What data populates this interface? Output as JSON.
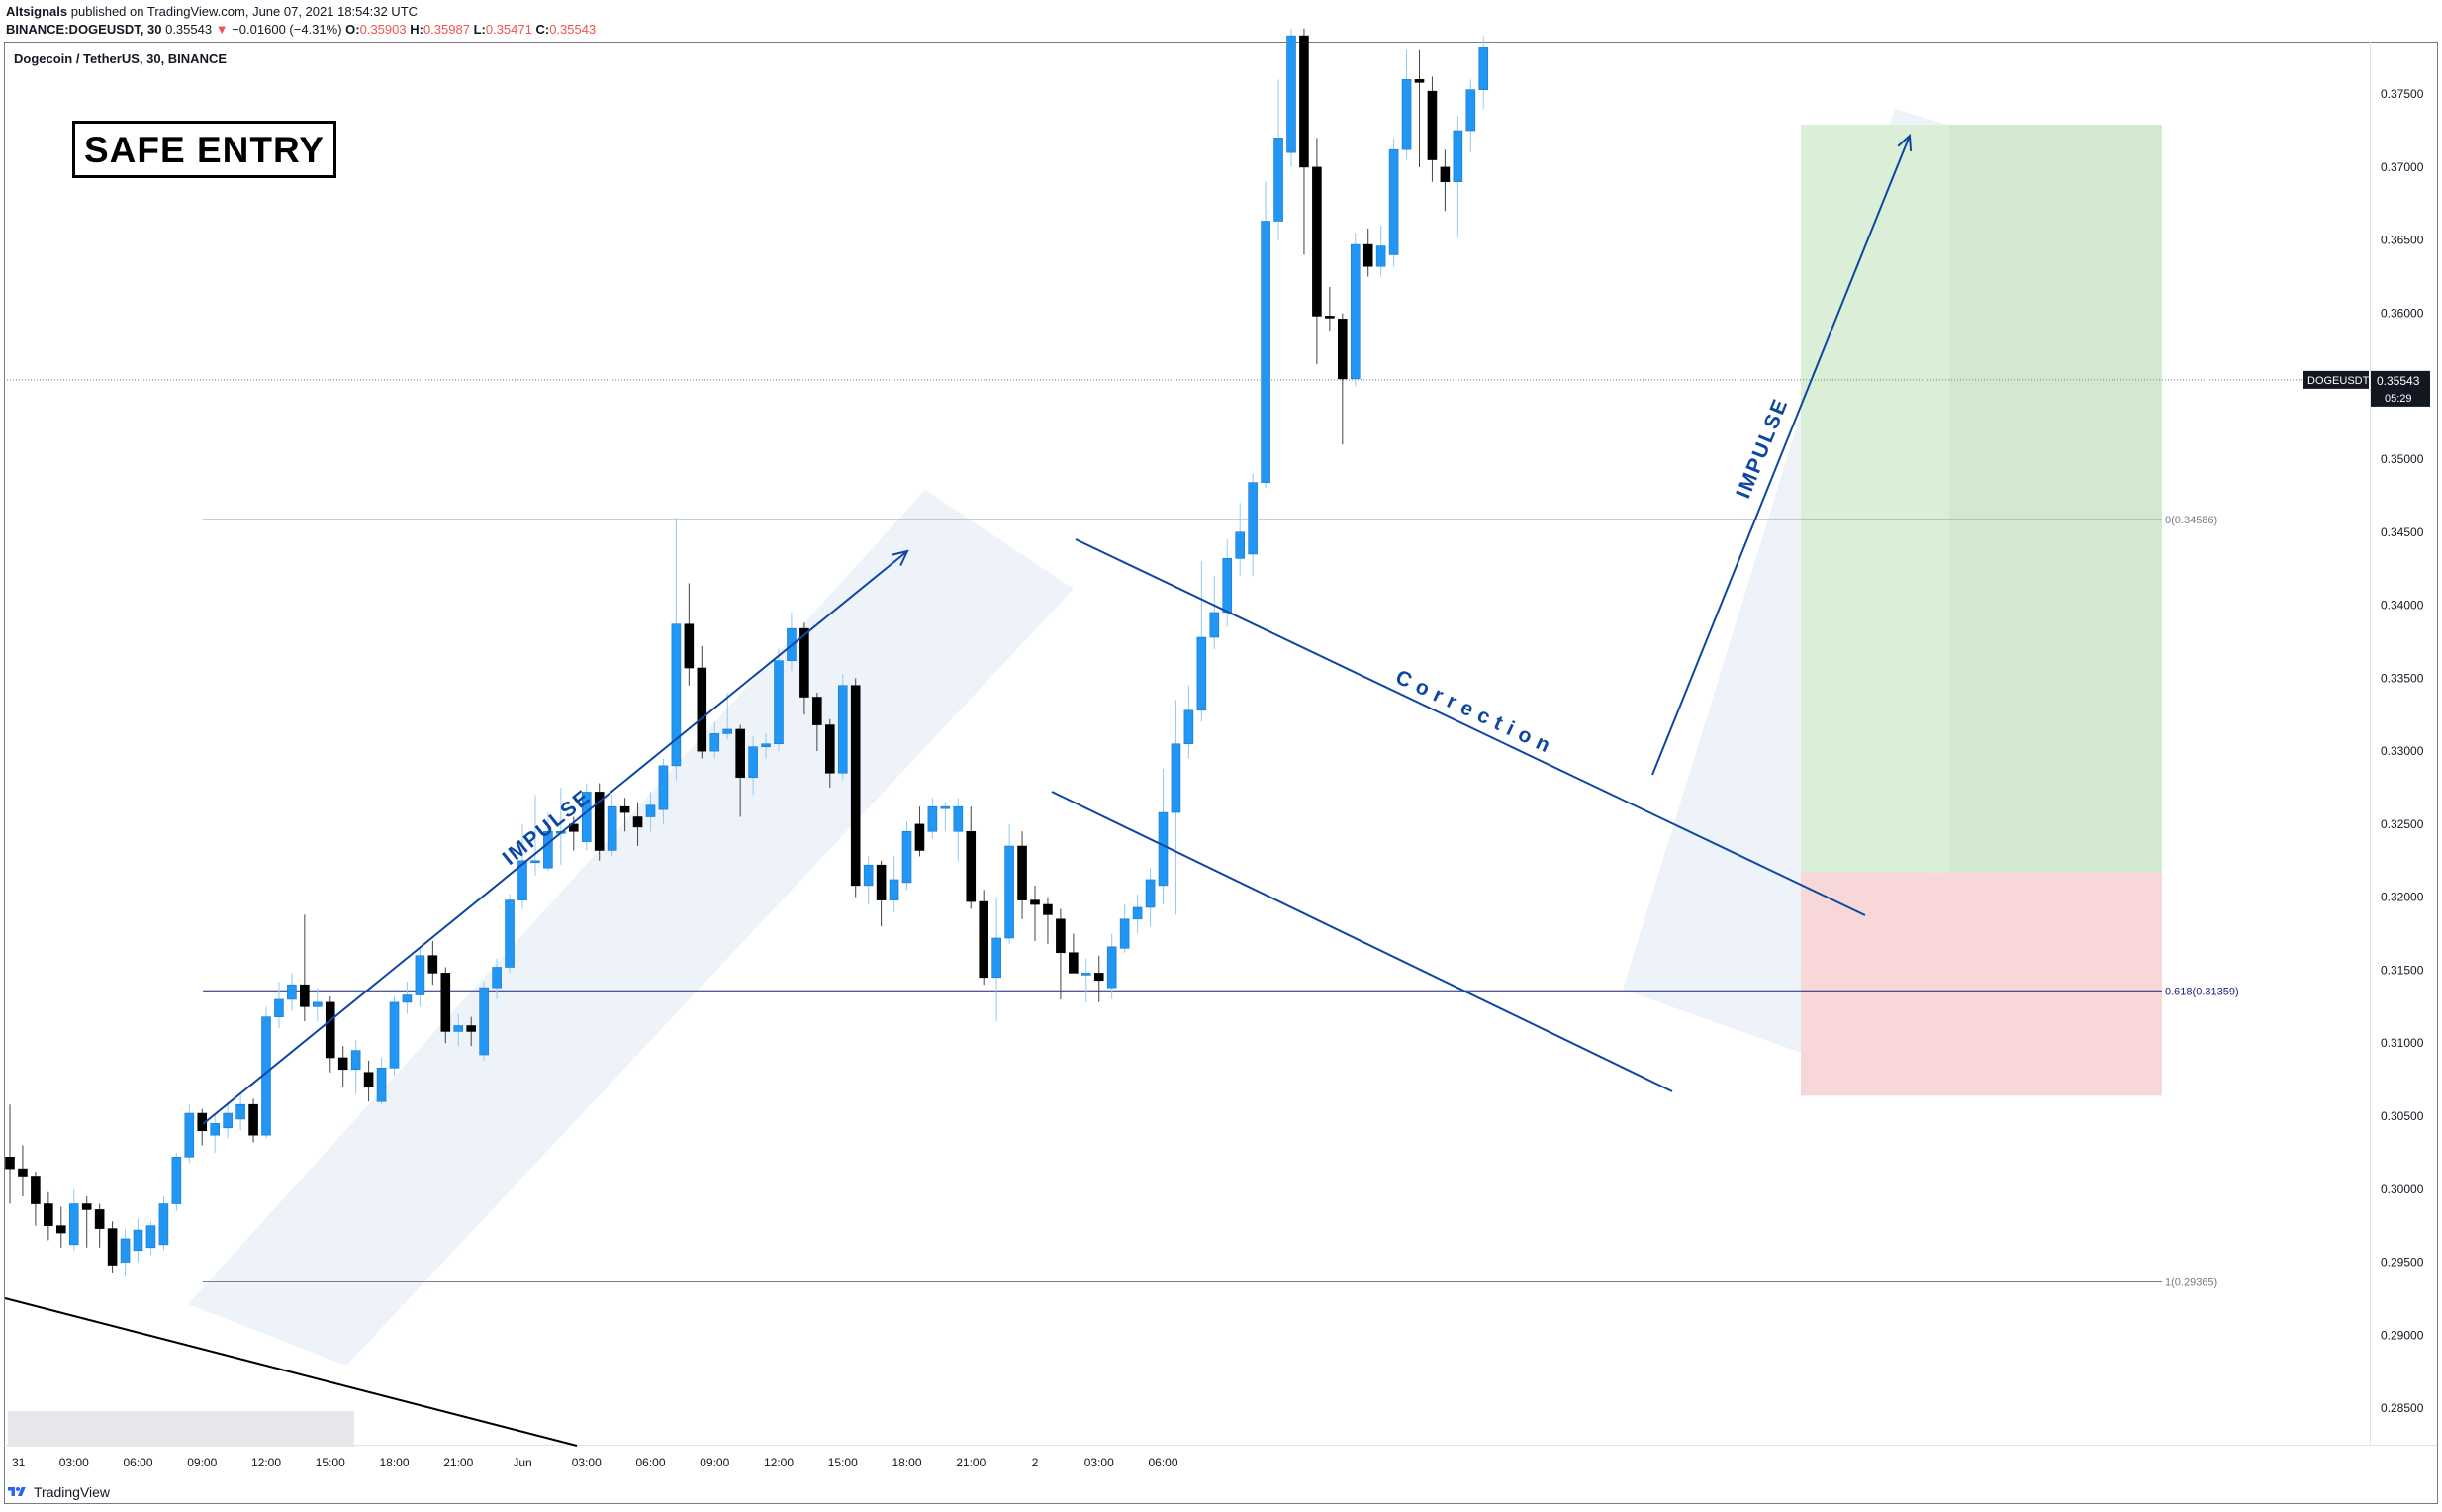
{
  "header": {
    "author": "Altsignals",
    "published": "published on TradingView.com, June 07, 2021 18:54:32 UTC",
    "ticker_line_prefix": "BINANCE:DOGEUSDT, 30",
    "last": "0.35543",
    "change_arrow": "▼",
    "change": "−0.01600 (−4.31%)",
    "o_label": "O:",
    "o": "0.35903",
    "h_label": "H:",
    "h": "0.35987",
    "l_label": "L:",
    "l": "0.35471",
    "c_label": "C:",
    "c": "0.35543"
  },
  "symbol_title": "Dogecoin / TetherUS, 30, BINANCE",
  "badge": "SAFE ENTRY",
  "footer_brand": "TradingView",
  "colors": {
    "up": "#2196f3",
    "down": "#000000",
    "line": "#0d47a1",
    "stop": "#f8d7d9",
    "target": "#dbeed8"
  },
  "chart_data": {
    "type": "candlestick",
    "title": "Dogecoin / TetherUS, 30, BINANCE",
    "interval": "30m",
    "ylim": [
      0.2825,
      0.3786
    ],
    "y_ticks": [
      "0.37500",
      "0.37000",
      "0.36500",
      "0.36000",
      "0.35500",
      "0.35000",
      "0.34500",
      "0.34000",
      "0.33500",
      "0.33000",
      "0.32500",
      "0.32000",
      "0.31500",
      "0.31000",
      "0.30500",
      "0.30000",
      "0.29500",
      "0.29000",
      "0.28500"
    ],
    "x_ticks": [
      {
        "label": "31",
        "bar": 0
      },
      {
        "label": "03:00",
        "bar": 5
      },
      {
        "label": "06:00",
        "bar": 10
      },
      {
        "label": "09:00",
        "bar": 15
      },
      {
        "label": "12:00",
        "bar": 20
      },
      {
        "label": "15:00",
        "bar": 25
      },
      {
        "label": "18:00",
        "bar": 30
      },
      {
        "label": "21:00",
        "bar": 35
      },
      {
        "label": "Jun",
        "bar": 40
      },
      {
        "label": "03:00",
        "bar": 45
      },
      {
        "label": "06:00",
        "bar": 50
      },
      {
        "label": "09:00",
        "bar": 55
      },
      {
        "label": "12:00",
        "bar": 60
      },
      {
        "label": "15:00",
        "bar": 65
      },
      {
        "label": "18:00",
        "bar": 70
      },
      {
        "label": "21:00",
        "bar": 75
      },
      {
        "label": "2",
        "bar": 80
      },
      {
        "label": "03:00",
        "bar": 85
      },
      {
        "label": "06:00",
        "bar": 90
      }
    ],
    "candles": [
      [
        0.3022,
        0.3014,
        0.3058,
        0.299
      ],
      [
        0.3014,
        0.3009,
        0.303,
        0.2995
      ],
      [
        0.3009,
        0.299,
        0.3012,
        0.2975
      ],
      [
        0.299,
        0.2975,
        0.2998,
        0.2965
      ],
      [
        0.2975,
        0.297,
        0.2988,
        0.296
      ],
      [
        0.2962,
        0.299,
        0.3,
        0.2958
      ],
      [
        0.299,
        0.2986,
        0.2995,
        0.296
      ],
      [
        0.2986,
        0.2973,
        0.299,
        0.296
      ],
      [
        0.2973,
        0.2948,
        0.2978,
        0.2943
      ],
      [
        0.295,
        0.2966,
        0.2973,
        0.294
      ],
      [
        0.2958,
        0.2972,
        0.298,
        0.295
      ],
      [
        0.296,
        0.2975,
        0.2978,
        0.2955
      ],
      [
        0.2962,
        0.299,
        0.2995,
        0.2958
      ],
      [
        0.299,
        0.3022,
        0.3025,
        0.2985
      ],
      [
        0.3022,
        0.3052,
        0.3058,
        0.3018
      ],
      [
        0.3052,
        0.304,
        0.3055,
        0.303
      ],
      [
        0.3037,
        0.3045,
        0.3052,
        0.3025
      ],
      [
        0.3042,
        0.3052,
        0.306,
        0.3035
      ],
      [
        0.3048,
        0.3058,
        0.3065,
        0.304
      ],
      [
        0.3058,
        0.3037,
        0.3062,
        0.3032
      ],
      [
        0.3037,
        0.3118,
        0.3125,
        0.3035
      ],
      [
        0.3118,
        0.313,
        0.3142,
        0.311
      ],
      [
        0.313,
        0.314,
        0.3148,
        0.3122
      ],
      [
        0.314,
        0.3125,
        0.3188,
        0.3115
      ],
      [
        0.3125,
        0.3128,
        0.3138,
        0.3115
      ],
      [
        0.3128,
        0.309,
        0.3132,
        0.308
      ],
      [
        0.309,
        0.3082,
        0.3098,
        0.307
      ],
      [
        0.3082,
        0.3095,
        0.3102,
        0.3065
      ],
      [
        0.308,
        0.307,
        0.3088,
        0.306
      ],
      [
        0.306,
        0.3083,
        0.309,
        0.3058
      ],
      [
        0.3083,
        0.3128,
        0.3132,
        0.3078
      ],
      [
        0.3128,
        0.3133,
        0.3142,
        0.312
      ],
      [
        0.3133,
        0.316,
        0.3165,
        0.3125
      ],
      [
        0.316,
        0.3148,
        0.317,
        0.314
      ],
      [
        0.3148,
        0.3108,
        0.3152,
        0.31
      ],
      [
        0.3108,
        0.3112,
        0.312,
        0.3098
      ],
      [
        0.3112,
        0.3108,
        0.3118,
        0.3098
      ],
      [
        0.3092,
        0.3138,
        0.3142,
        0.3088
      ],
      [
        0.3138,
        0.3152,
        0.3158,
        0.313
      ],
      [
        0.3152,
        0.3198,
        0.3202,
        0.3148
      ],
      [
        0.3198,
        0.3225,
        0.325,
        0.3192
      ],
      [
        0.3225,
        0.3225,
        0.327,
        0.3215
      ],
      [
        0.322,
        0.3245,
        0.3258,
        0.3218
      ],
      [
        0.3245,
        0.3245,
        0.3275,
        0.3222
      ],
      [
        0.325,
        0.3245,
        0.3255,
        0.3232
      ],
      [
        0.3238,
        0.3272,
        0.3278,
        0.3232
      ],
      [
        0.3272,
        0.3232,
        0.3278,
        0.3225
      ],
      [
        0.3232,
        0.3262,
        0.327,
        0.3228
      ],
      [
        0.3262,
        0.3258,
        0.3268,
        0.3245
      ],
      [
        0.3255,
        0.3248,
        0.3265,
        0.3235
      ],
      [
        0.3255,
        0.3263,
        0.3272,
        0.3245
      ],
      [
        0.326,
        0.329,
        0.3295,
        0.325
      ],
      [
        0.329,
        0.3387,
        0.346,
        0.328
      ],
      [
        0.3387,
        0.3357,
        0.3415,
        0.3345
      ],
      [
        0.3357,
        0.33,
        0.3372,
        0.3295
      ],
      [
        0.33,
        0.3312,
        0.332,
        0.3295
      ],
      [
        0.3312,
        0.3315,
        0.334,
        0.3308
      ],
      [
        0.3315,
        0.3282,
        0.3318,
        0.3255
      ],
      [
        0.3282,
        0.3303,
        0.331,
        0.327
      ],
      [
        0.3303,
        0.3305,
        0.3312,
        0.3295
      ],
      [
        0.3305,
        0.3362,
        0.337,
        0.33
      ],
      [
        0.3362,
        0.3384,
        0.3395,
        0.3355
      ],
      [
        0.3384,
        0.3337,
        0.3388,
        0.3325
      ],
      [
        0.3337,
        0.3318,
        0.334,
        0.33
      ],
      [
        0.3318,
        0.3285,
        0.3322,
        0.3275
      ],
      [
        0.3285,
        0.3345,
        0.3353,
        0.328
      ],
      [
        0.3345,
        0.3208,
        0.335,
        0.32
      ],
      [
        0.3208,
        0.3222,
        0.3228,
        0.3195
      ],
      [
        0.3222,
        0.3198,
        0.3225,
        0.318
      ],
      [
        0.3198,
        0.3212,
        0.3228,
        0.319
      ],
      [
        0.321,
        0.3245,
        0.3252,
        0.3205
      ],
      [
        0.325,
        0.3232,
        0.3262,
        0.3228
      ],
      [
        0.3245,
        0.3262,
        0.3268,
        0.324
      ],
      [
        0.3262,
        0.3262,
        0.3265,
        0.3245
      ],
      [
        0.3245,
        0.3262,
        0.3268,
        0.3225
      ],
      [
        0.3245,
        0.3197,
        0.3262,
        0.3192
      ],
      [
        0.3197,
        0.3145,
        0.3205,
        0.314
      ],
      [
        0.3145,
        0.3172,
        0.32,
        0.3115
      ],
      [
        0.3172,
        0.3235,
        0.325,
        0.3168
      ],
      [
        0.3235,
        0.3198,
        0.3245,
        0.3185
      ],
      [
        0.3198,
        0.3195,
        0.3208,
        0.317
      ],
      [
        0.3195,
        0.3188,
        0.32,
        0.3168
      ],
      [
        0.3185,
        0.3162,
        0.3192,
        0.313
      ],
      [
        0.3162,
        0.3148,
        0.3175,
        0.315
      ],
      [
        0.3148,
        0.3148,
        0.3158,
        0.3128
      ],
      [
        0.3148,
        0.3143,
        0.316,
        0.3128
      ],
      [
        0.3138,
        0.3166,
        0.3175,
        0.313
      ],
      [
        0.3165,
        0.3185,
        0.3195,
        0.3162
      ],
      [
        0.3185,
        0.3193,
        0.3202,
        0.3175
      ],
      [
        0.3193,
        0.3212,
        0.322,
        0.318
      ],
      [
        0.3208,
        0.3258,
        0.3288,
        0.3195
      ],
      [
        0.3258,
        0.3305,
        0.3335,
        0.3188
      ],
      [
        0.3305,
        0.3328,
        0.3345,
        0.3295
      ],
      [
        0.3328,
        0.3378,
        0.343,
        0.332
      ],
      [
        0.3378,
        0.3395,
        0.342,
        0.337
      ],
      [
        0.3395,
        0.3432,
        0.3445,
        0.3385
      ],
      [
        0.3432,
        0.345,
        0.347,
        0.342
      ],
      [
        0.3435,
        0.3484,
        0.349,
        0.342
      ],
      [
        0.3484,
        0.3663,
        0.369,
        0.348
      ],
      [
        0.3663,
        0.372,
        0.376,
        0.365
      ],
      [
        0.371,
        0.379,
        0.3795,
        0.37
      ],
      [
        0.379,
        0.37,
        0.3795,
        0.364
      ],
      [
        0.37,
        0.3598,
        0.372,
        0.3565
      ],
      [
        0.3598,
        0.3597,
        0.3618,
        0.3588
      ],
      [
        0.3596,
        0.3555,
        0.36,
        0.351
      ],
      [
        0.3555,
        0.3647,
        0.3655,
        0.355
      ],
      [
        0.3647,
        0.3632,
        0.3658,
        0.3625
      ],
      [
        0.3632,
        0.3646,
        0.366,
        0.3625
      ],
      [
        0.364,
        0.3712,
        0.372,
        0.3632
      ],
      [
        0.3712,
        0.376,
        0.378,
        0.3705
      ],
      [
        0.376,
        0.3758,
        0.378,
        0.37
      ],
      [
        0.3752,
        0.3705,
        0.3762,
        0.369
      ],
      [
        0.37,
        0.369,
        0.3712,
        0.367
      ],
      [
        0.369,
        0.3725,
        0.3735,
        0.3652
      ],
      [
        0.3725,
        0.3753,
        0.376,
        0.371
      ],
      [
        0.3753,
        0.3782,
        0.379,
        0.374
      ]
    ],
    "price_tag": {
      "symbol": "DOGEUSDT",
      "price": "0.35543",
      "countdown": "05:29",
      "value": 0.35543
    },
    "fib_levels": [
      {
        "label": "0(0.34586)",
        "value": 0.34586
      },
      {
        "label": "0.618(0.31359)",
        "value": 0.31359
      },
      {
        "label": "1(0.29365)",
        "value": 0.29365
      }
    ],
    "annotations": {
      "impulse_1": "IMPULSE",
      "correction": "Correction",
      "impulse_2": "IMPULSE"
    },
    "position": {
      "entry": 0.3217,
      "target": 0.3729,
      "stop": 0.3064
    }
  }
}
